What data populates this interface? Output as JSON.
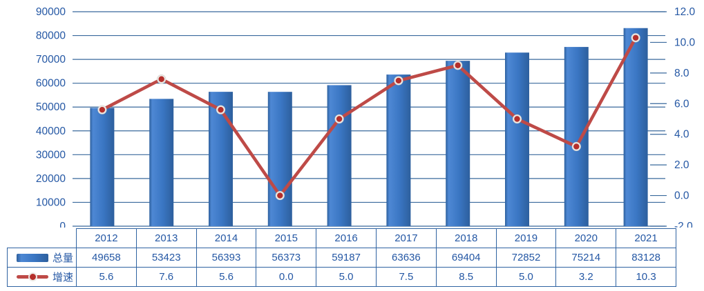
{
  "chart_data": {
    "type": "bar+line combo",
    "categories": [
      "2012",
      "2013",
      "2014",
      "2015",
      "2016",
      "2017",
      "2018",
      "2019",
      "2020",
      "2021"
    ],
    "series": [
      {
        "name": "总量",
        "type": "bar",
        "axis": "left",
        "values": [
          49658,
          53423,
          56393,
          56373,
          59187,
          63636,
          69404,
          72852,
          75214,
          83128
        ]
      },
      {
        "name": "增速",
        "type": "line",
        "axis": "right",
        "values": [
          5.6,
          7.6,
          5.6,
          0.0,
          5.0,
          7.5,
          8.5,
          5.0,
          3.2,
          10.3
        ]
      }
    ],
    "left_axis": {
      "min": 0,
      "max": 90000,
      "step": 10000,
      "tick_labels": [
        "0",
        "10000",
        "20000",
        "30000",
        "40000",
        "50000",
        "60000",
        "70000",
        "80000",
        "90000"
      ]
    },
    "right_axis": {
      "min": -2,
      "max": 12,
      "step": 2,
      "tick_labels": [
        "-2.0",
        "0.0",
        "2.0",
        "4.0",
        "6.0",
        "8.0",
        "10.0",
        "12.0"
      ]
    },
    "grid": true,
    "legend_position": "table-left",
    "title": "",
    "xlabel": "",
    "ylabel": ""
  },
  "table": {
    "legend_labels": [
      "总量",
      "增速"
    ],
    "years": [
      "2012",
      "2013",
      "2014",
      "2015",
      "2016",
      "2017",
      "2018",
      "2019",
      "2020",
      "2021"
    ],
    "totals": [
      "49658",
      "53423",
      "56393",
      "56373",
      "59187",
      "63636",
      "69404",
      "72852",
      "75214",
      "83128"
    ],
    "rates": [
      "5.6",
      "7.6",
      "5.6",
      "0.0",
      "5.0",
      "7.5",
      "8.5",
      "5.0",
      "3.2",
      "10.3"
    ]
  },
  "colors": {
    "bar": "#3a76c3",
    "bar_dark": "#2d5f9d",
    "bar_light": "#4e88d4",
    "line": "#be4a47",
    "marker": "#b52f2b",
    "marker_ring": "#ece9e5",
    "grid": "#38689c",
    "border": "#2e62a1",
    "text": "#2457a4",
    "background": "#ffffff"
  }
}
